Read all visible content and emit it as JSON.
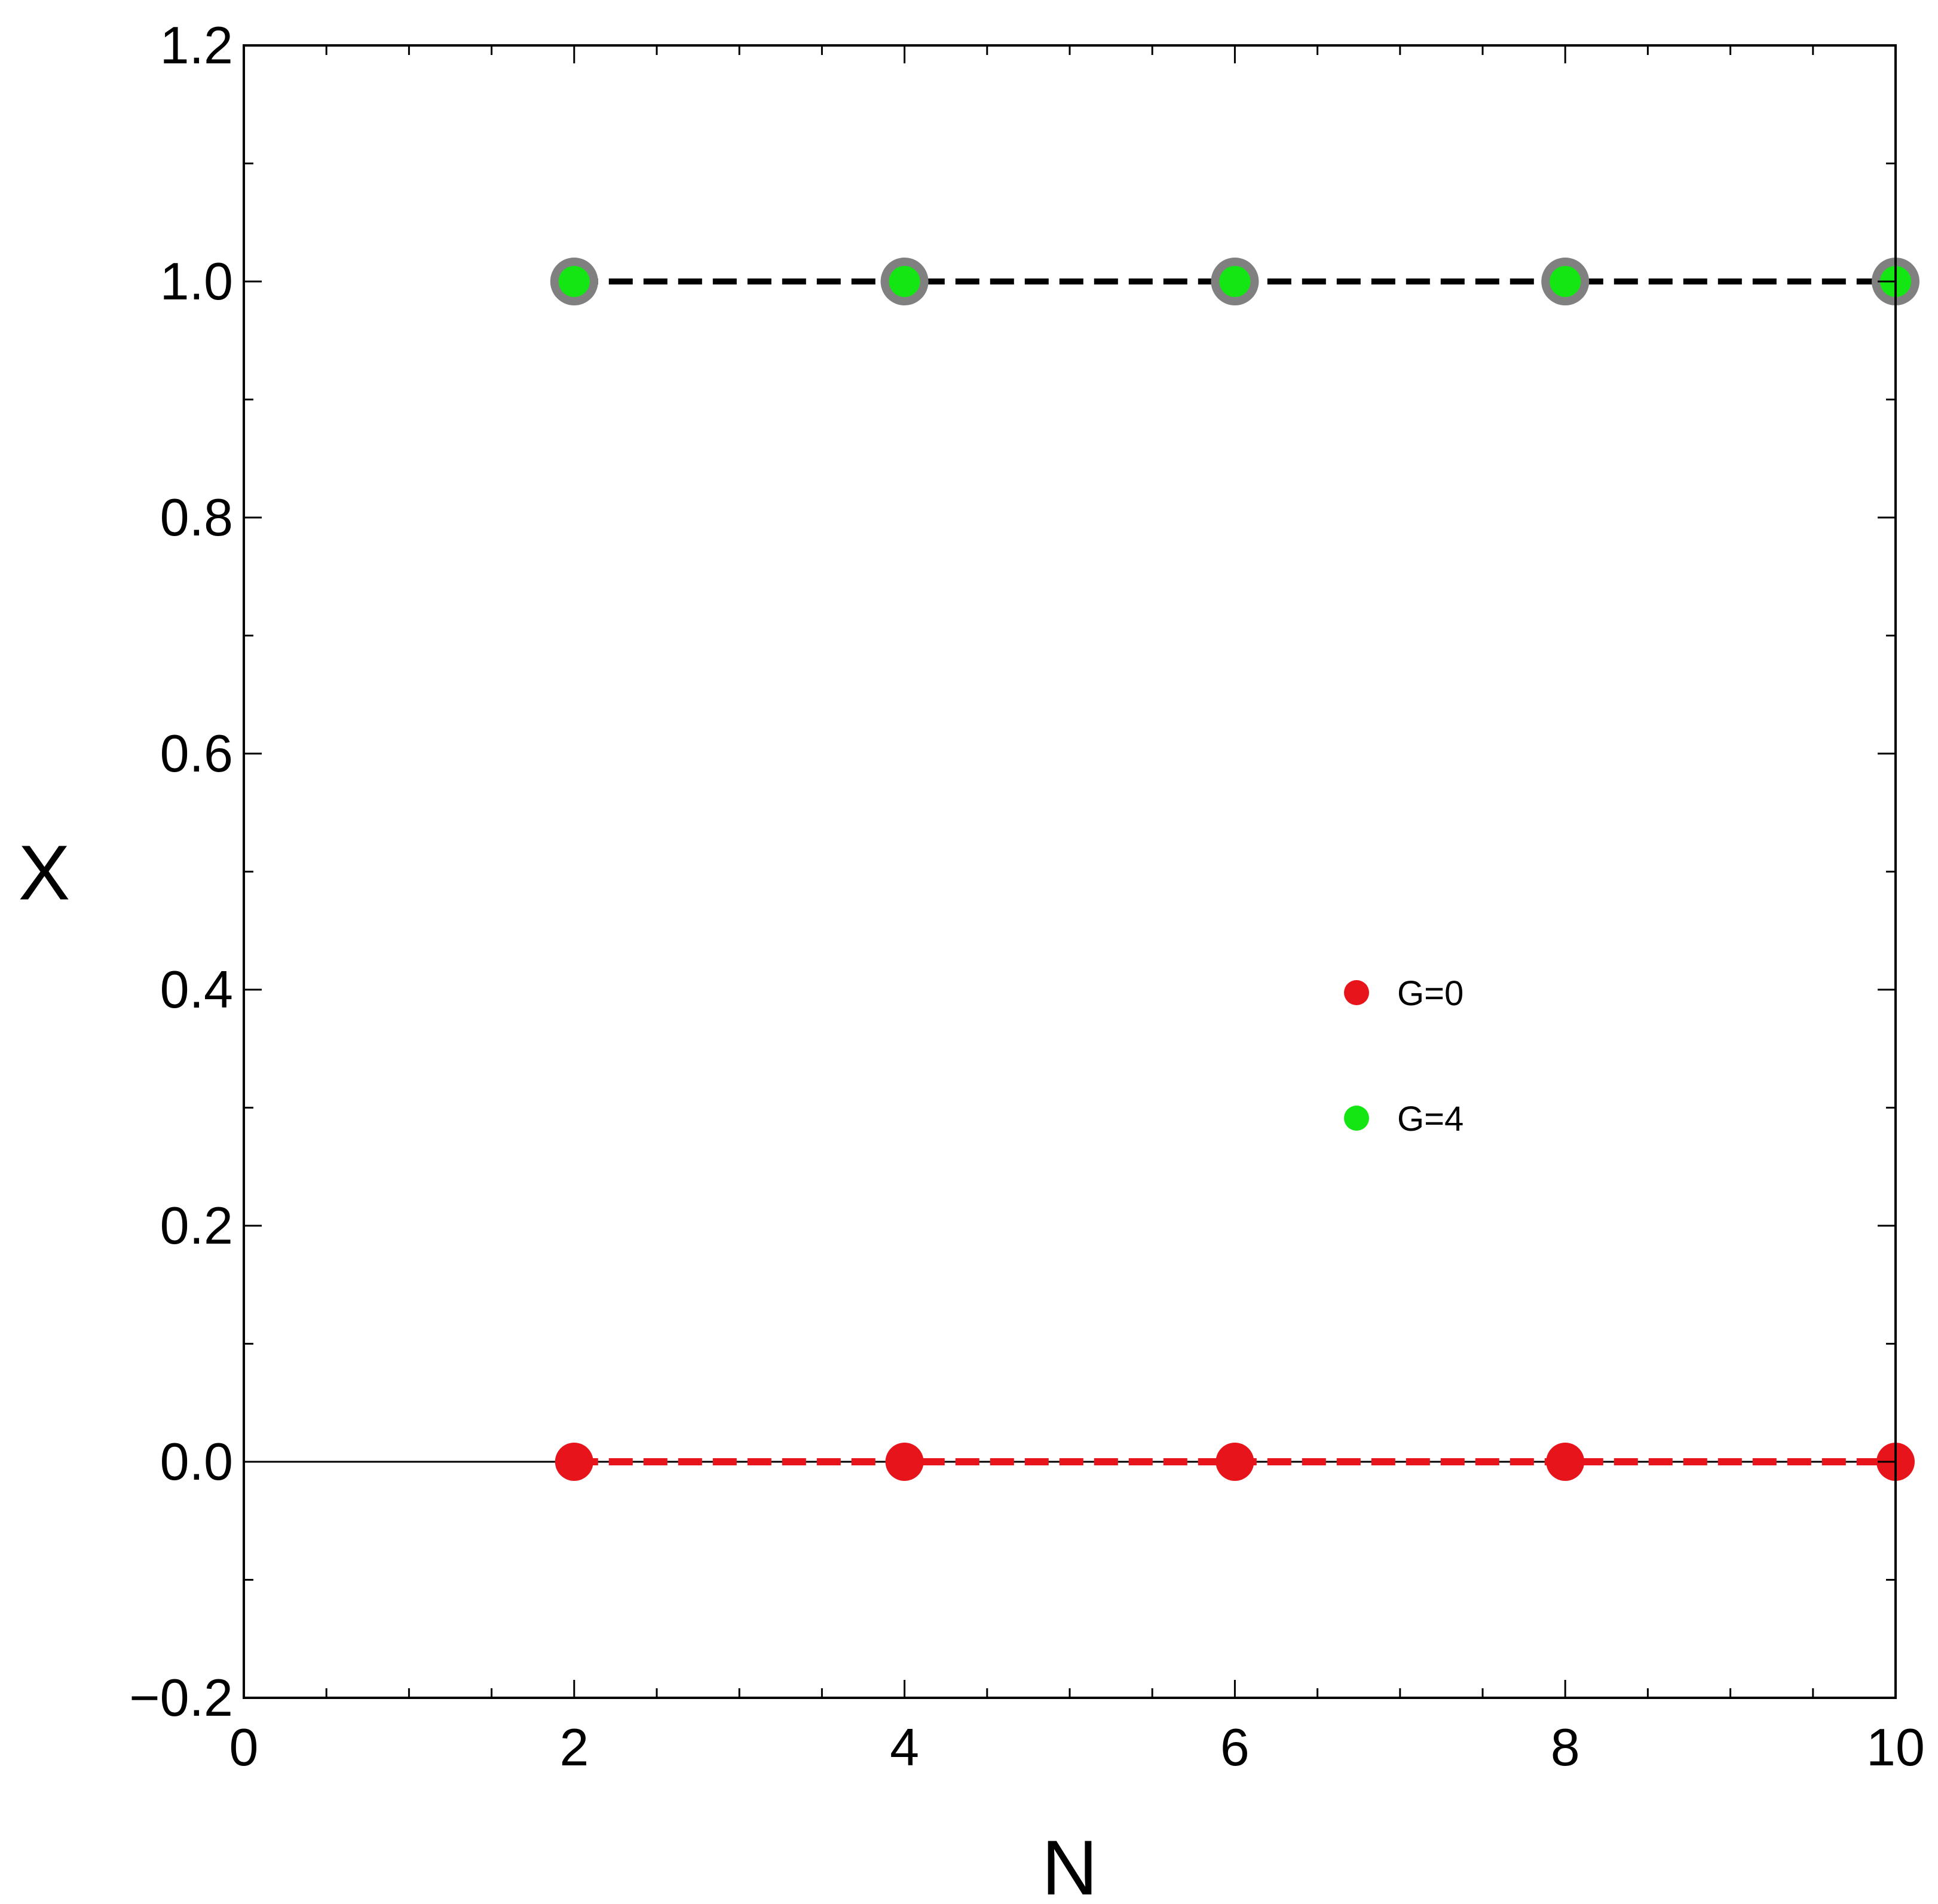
{
  "chart_data": {
    "type": "scatter",
    "xlabel": "N",
    "ylabel": "X",
    "xlim": [
      0,
      10
    ],
    "ylim": [
      -0.2,
      1.2
    ],
    "x_ticks": [
      "0",
      "2",
      "4",
      "6",
      "8",
      "10"
    ],
    "y_ticks": [
      "−0.2",
      "0.0",
      "0.2",
      "0.4",
      "0.6",
      "0.8",
      "1.0",
      "1.2"
    ],
    "grid": false,
    "legend_position": "center-right",
    "series": [
      {
        "name": "G=0",
        "color": "#e8141b",
        "x": [
          2,
          4,
          6,
          8,
          10
        ],
        "y": [
          0,
          0,
          0,
          0,
          0
        ],
        "line": "dashed",
        "line_color": "#e8141b"
      },
      {
        "name": "G=4",
        "color": "#14e614",
        "edge_color": "#808080",
        "x": [
          2,
          4,
          6,
          8,
          10
        ],
        "y": [
          1,
          1,
          1,
          1,
          1
        ],
        "line": "dashed",
        "line_color": "#000000"
      }
    ]
  }
}
